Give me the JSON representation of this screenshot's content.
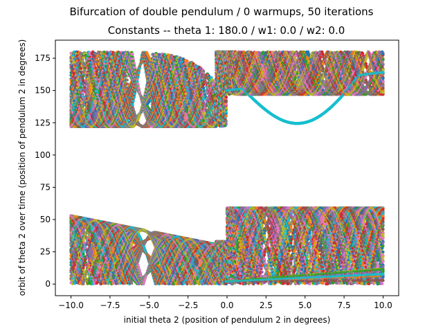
{
  "chart_data": {
    "type": "scatter",
    "title": "Bifurcation of double pendulum / 0 warmups, 50 iterations",
    "subtitle": "Constants -- theta 1: 180.0 / w1: 0.0 / w2: 0.0",
    "xlabel": "initial theta 2 (position of pendulum 2 in degrees)",
    "ylabel": "orbit of theta 2 over time (position of pendulum 2 in degrees)",
    "xlim": [
      -11,
      11
    ],
    "ylim": [
      -9,
      189
    ],
    "xticks": [
      "−10.0",
      "−7.5",
      "−5.0",
      "−2.5",
      "0.0",
      "2.5",
      "5.0",
      "7.5",
      "10.0"
    ],
    "xtick_values": [
      -10,
      -7.5,
      -5,
      -2.5,
      0,
      2.5,
      5,
      7.5,
      10
    ],
    "yticks": [
      "0",
      "25",
      "50",
      "75",
      "100",
      "125",
      "150",
      "175"
    ],
    "ytick_values": [
      0,
      25,
      50,
      75,
      100,
      125,
      150,
      175
    ],
    "grid": false,
    "legend": "none",
    "x_sampling": {
      "start": -10,
      "end": 10,
      "step": 0.05
    },
    "iterations": 50,
    "palette": [
      "#1f77b4",
      "#ff7f0e",
      "#2ca02c",
      "#d62728",
      "#9467bd",
      "#8c564b",
      "#e377c2",
      "#7f7f7f",
      "#bcbd22",
      "#17becf"
    ],
    "regions": [
      {
        "name": "upper band, x < 0",
        "x_range": [
          -10,
          0
        ],
        "y_range": [
          122,
          180
        ]
      },
      {
        "name": "upper band, x > 0",
        "x_range": [
          0,
          10
        ],
        "y_range": [
          117,
          180
        ]
      },
      {
        "name": "lower band, x < 0",
        "x_range": [
          -10,
          0
        ],
        "y_range": [
          0,
          53
        ]
      },
      {
        "name": "lower band, x > 0",
        "x_range": [
          0,
          10
        ],
        "y_range": [
          0,
          59
        ]
      }
    ]
  }
}
